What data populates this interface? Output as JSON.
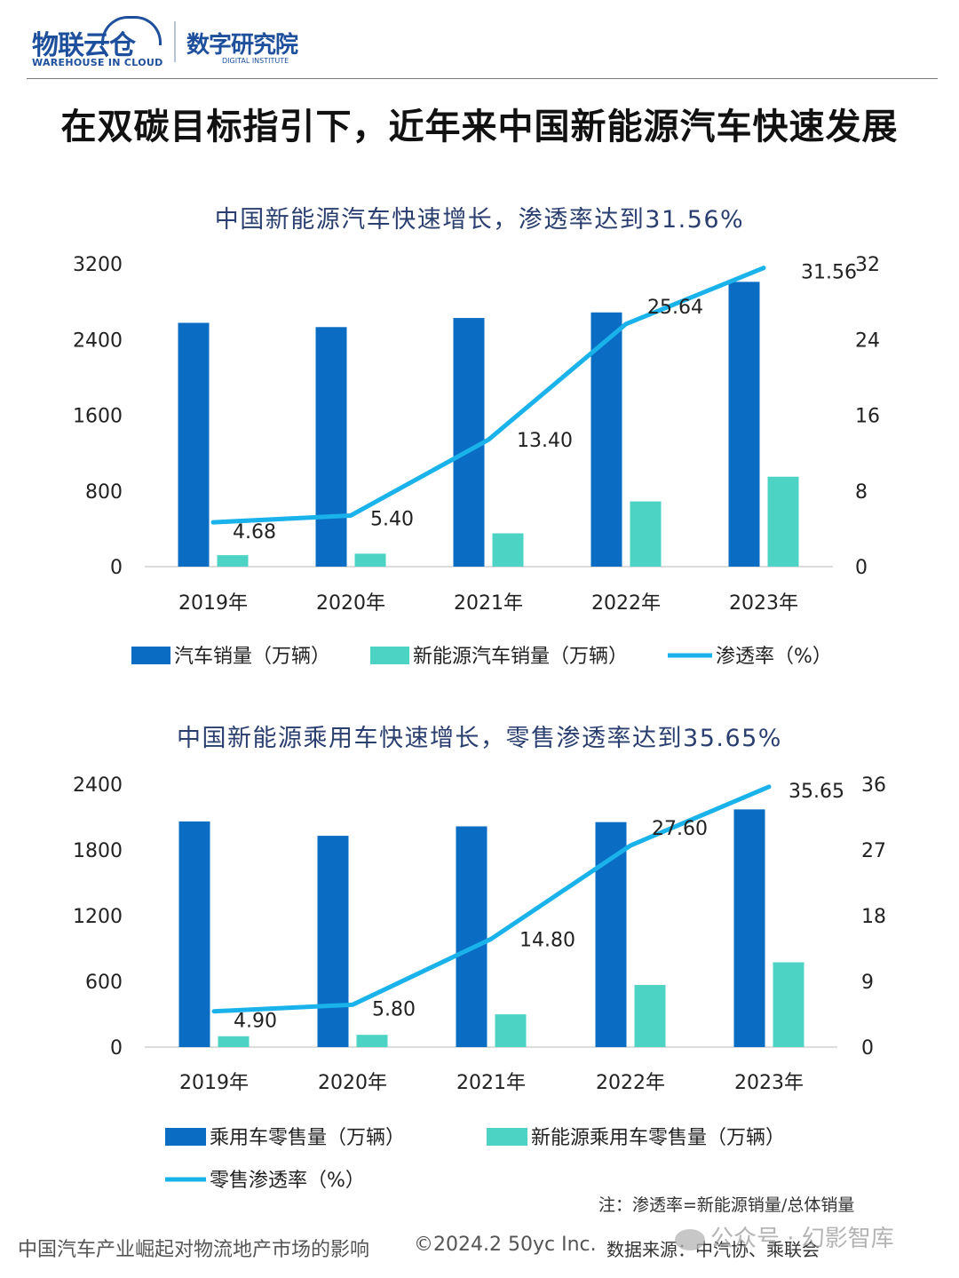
{
  "header": {
    "logo1_cn": "物联云仓",
    "logo1_en": "WAREHOUSE IN CLOUD",
    "logo2_cn": "数字研究院",
    "logo2_en": "DIGITAL INSTITUTE"
  },
  "page_title": "在双碳目标指引下，近年来中国新能源汽车快速发展",
  "chart_data": [
    {
      "type": "bar",
      "title": "中国新能源汽车快速增长，渗透率达到31.56%",
      "categories": [
        "2019年",
        "2020年",
        "2021年",
        "2022年",
        "2023年"
      ],
      "y_left": {
        "min": 0,
        "max": 3200,
        "ticks": [
          0,
          800,
          1600,
          2400,
          3200
        ],
        "tick_labels": [
          "0",
          "800",
          "1600",
          "2400",
          "3200"
        ]
      },
      "y_right": {
        "min": 0,
        "max": 32,
        "ticks": [
          0,
          8,
          16,
          24,
          32
        ],
        "tick_labels": [
          "0",
          "8",
          "16",
          "24",
          "32"
        ]
      },
      "series": [
        {
          "name": "汽车销量（万辆）",
          "type": "bar",
          "axis": "left",
          "color": "#0b6cc4",
          "values": [
            2576,
            2531,
            2627,
            2686,
            3009
          ]
        },
        {
          "name": "新能源汽车销量（万辆）",
          "type": "bar",
          "axis": "left",
          "color": "#4dd3c4",
          "values": [
            121,
            137,
            352,
            689,
            950
          ]
        },
        {
          "name": "渗透率（%）",
          "type": "line",
          "axis": "right",
          "color": "#1ab2ea",
          "values": [
            4.68,
            5.4,
            13.4,
            25.64,
            31.56
          ],
          "labels": [
            "4.68",
            "5.40",
            "13.40",
            "25.64",
            "31.56"
          ]
        }
      ],
      "legend_position": "bottom",
      "grid": false
    },
    {
      "type": "bar",
      "title": "中国新能源乘用车快速增长，零售渗透率达到35.65%",
      "categories": [
        "2019年",
        "2020年",
        "2021年",
        "2022年",
        "2023年"
      ],
      "y_left": {
        "min": 0,
        "max": 2400,
        "ticks": [
          0,
          600,
          1200,
          1800,
          2400
        ],
        "tick_labels": [
          "0",
          "600",
          "1200",
          "1800",
          "2400"
        ]
      },
      "y_right": {
        "min": 0,
        "max": 36,
        "ticks": [
          0,
          9,
          18,
          27,
          36
        ],
        "tick_labels": [
          "0",
          "9",
          "18",
          "27",
          "36"
        ]
      },
      "series": [
        {
          "name": "乘用车零售量（万辆）",
          "type": "bar",
          "axis": "left",
          "color": "#0b6cc4",
          "values": [
            2060,
            1929,
            2015,
            2054,
            2170
          ]
        },
        {
          "name": "新能源乘用车零售量（万辆）",
          "type": "bar",
          "axis": "left",
          "color": "#4dd3c4",
          "values": [
            99,
            112,
            299,
            567,
            774
          ]
        },
        {
          "name": "零售渗透率（%）",
          "type": "line",
          "axis": "right",
          "color": "#1ab2ea",
          "values": [
            4.9,
            5.8,
            14.8,
            27.6,
            35.65
          ],
          "labels": [
            "4.90",
            "5.80",
            "14.80",
            "27.60",
            "35.65"
          ]
        }
      ],
      "legend_position": "bottom",
      "grid": false
    }
  ],
  "note": "注：渗透率=新能源销量/总体销量",
  "footer": {
    "left": "中国汽车产业崛起对物流地产市场的影响",
    "copyright": "©2024.2 50yc Inc.",
    "source": "数据来源：中汽协、乘联会"
  },
  "watermark": "公众号 · 幻影智库"
}
